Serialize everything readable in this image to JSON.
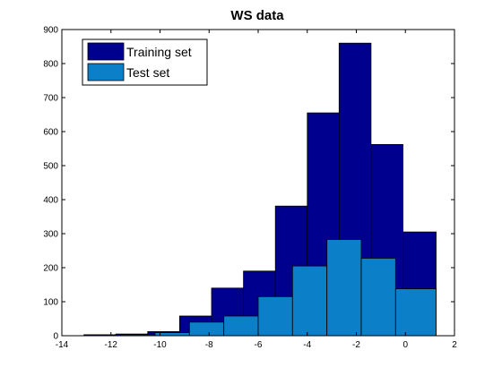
{
  "chart_data": {
    "type": "bar",
    "title": "WS data",
    "xlabel": "",
    "ylabel": "",
    "xlim": [
      -14,
      2
    ],
    "ylim": [
      0,
      900
    ],
    "xticks": [
      -14,
      -12,
      -10,
      -8,
      -6,
      -4,
      -2,
      0,
      2
    ],
    "yticks": [
      0,
      100,
      200,
      300,
      400,
      500,
      600,
      700,
      800,
      900
    ],
    "grid": false,
    "legend_position": "top-left",
    "series": [
      {
        "name": "Training set",
        "color": "#00008f",
        "bins": [
          {
            "start": -13.1,
            "end": -11.8,
            "value": 3
          },
          {
            "start": -11.8,
            "end": -10.5,
            "value": 5
          },
          {
            "start": -10.5,
            "end": -9.2,
            "value": 12
          },
          {
            "start": -9.2,
            "end": -7.9,
            "value": 58
          },
          {
            "start": -7.9,
            "end": -6.6,
            "value": 140
          },
          {
            "start": -6.6,
            "end": -5.3,
            "value": 190
          },
          {
            "start": -5.3,
            "end": -4.0,
            "value": 381
          },
          {
            "start": -4.0,
            "end": -2.7,
            "value": 655
          },
          {
            "start": -2.7,
            "end": -1.4,
            "value": 860
          },
          {
            "start": -1.4,
            "end": -0.1,
            "value": 562
          },
          {
            "start": -0.1,
            "end": 1.25,
            "value": 305
          }
        ]
      },
      {
        "name": "Test set",
        "color": "#0b80c8",
        "bins": [
          {
            "start": -11.6,
            "end": -10.2,
            "value": 3
          },
          {
            "start": -10.2,
            "end": -8.8,
            "value": 9
          },
          {
            "start": -8.8,
            "end": -7.4,
            "value": 40
          },
          {
            "start": -7.4,
            "end": -6.0,
            "value": 58
          },
          {
            "start": -6.0,
            "end": -4.6,
            "value": 115
          },
          {
            "start": -4.6,
            "end": -3.2,
            "value": 205
          },
          {
            "start": -3.2,
            "end": -1.8,
            "value": 283
          },
          {
            "start": -1.8,
            "end": -0.4,
            "value": 228
          },
          {
            "start": -0.4,
            "end": 1.25,
            "value": 138
          }
        ]
      }
    ]
  }
}
